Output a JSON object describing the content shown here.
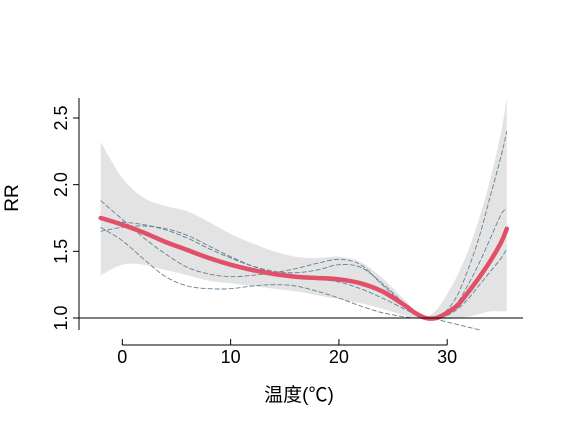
{
  "chart_data": {
    "type": "line",
    "title": "",
    "xlabel": "温度(℃)",
    "ylabel": "RR",
    "xlim": [
      -4,
      37
    ],
    "ylim": [
      0.91,
      2.8
    ],
    "x_ticks": [
      0,
      10,
      20,
      30
    ],
    "y_ticks": [
      1.0,
      1.5,
      2.0,
      2.5
    ],
    "x_tick_labels": [
      "0",
      "10",
      "20",
      "30"
    ],
    "y_tick_labels": [
      "1.0",
      "1.5",
      "2.0",
      "2.5"
    ],
    "reference_line": 1.0,
    "grid": false,
    "colors": {
      "main": "#e05068",
      "alt": "#5f8296",
      "band": "#e3e3e3",
      "ref": "#000000"
    },
    "confidence_band": {
      "x": [
        -2,
        0,
        2,
        4,
        6,
        8,
        10,
        12,
        14,
        16,
        18,
        20,
        22,
        24,
        26,
        27,
        28,
        29,
        30,
        31,
        32,
        33,
        34,
        35,
        35.5
      ],
      "upper": [
        2.32,
        2.05,
        1.9,
        1.84,
        1.8,
        1.72,
        1.63,
        1.56,
        1.5,
        1.46,
        1.45,
        1.46,
        1.42,
        1.3,
        1.14,
        1.06,
        1.01,
        1.06,
        1.18,
        1.33,
        1.52,
        1.76,
        2.05,
        2.4,
        2.65
      ],
      "lower": [
        1.32,
        1.4,
        1.4,
        1.36,
        1.32,
        1.28,
        1.26,
        1.24,
        1.22,
        1.2,
        1.17,
        1.14,
        1.11,
        1.07,
        1.02,
        1.0,
        0.99,
        0.99,
        0.99,
        1.0,
        1.01,
        1.03,
        1.05,
        1.05,
        1.05
      ]
    },
    "series": [
      {
        "role": "main",
        "x": [
          -2,
          0,
          2,
          4,
          6,
          8,
          10,
          12,
          14,
          16,
          18,
          20,
          22,
          24,
          26,
          27,
          28,
          29,
          30,
          31,
          32,
          33,
          34,
          35,
          35.5
        ],
        "values": [
          1.75,
          1.7,
          1.64,
          1.57,
          1.51,
          1.45,
          1.4,
          1.36,
          1.33,
          1.31,
          1.3,
          1.29,
          1.26,
          1.2,
          1.1,
          1.04,
          1.0,
          1.0,
          1.04,
          1.1,
          1.2,
          1.31,
          1.43,
          1.57,
          1.67
        ]
      },
      {
        "role": "alt",
        "x": [
          -2,
          0,
          2,
          4,
          6,
          8,
          10,
          12,
          14,
          16,
          18,
          20,
          22,
          24,
          26,
          27,
          28,
          29,
          30,
          31,
          32,
          33,
          34,
          35,
          35.5
        ],
        "values": [
          1.88,
          1.74,
          1.6,
          1.48,
          1.38,
          1.33,
          1.31,
          1.32,
          1.34,
          1.37,
          1.41,
          1.44,
          1.4,
          1.25,
          1.1,
          1.04,
          1.0,
          1.01,
          1.06,
          1.18,
          1.38,
          1.62,
          1.92,
          2.22,
          2.4
        ]
      },
      {
        "role": "alt",
        "x": [
          -2,
          0,
          2,
          4,
          6,
          8,
          10,
          12,
          14,
          16,
          18,
          20,
          22,
          24,
          26,
          27,
          28,
          29,
          30,
          31,
          32,
          33,
          34,
          35,
          35.5
        ],
        "values": [
          1.74,
          1.72,
          1.7,
          1.66,
          1.6,
          1.52,
          1.45,
          1.39,
          1.35,
          1.34,
          1.36,
          1.4,
          1.38,
          1.26,
          1.11,
          1.04,
          1.0,
          1.0,
          1.04,
          1.12,
          1.26,
          1.42,
          1.6,
          1.78,
          1.82
        ]
      },
      {
        "role": "alt",
        "x": [
          -2,
          0,
          2,
          4,
          6,
          8,
          10,
          12,
          14,
          16,
          18,
          20,
          22,
          24,
          26,
          27,
          28,
          29,
          30,
          31,
          32,
          33,
          34,
          35,
          35.5
        ],
        "values": [
          1.65,
          1.68,
          1.69,
          1.67,
          1.62,
          1.54,
          1.46,
          1.39,
          1.34,
          1.31,
          1.29,
          1.27,
          1.22,
          1.15,
          1.07,
          1.03,
          1.0,
          1.0,
          1.02,
          1.07,
          1.15,
          1.25,
          1.35,
          1.45,
          1.52
        ]
      },
      {
        "role": "alt",
        "x": [
          -2,
          0,
          2,
          4,
          6,
          8,
          10,
          12,
          14,
          16,
          18,
          20,
          22,
          24,
          26,
          27,
          28,
          29,
          30,
          31,
          32,
          33
        ],
        "values": [
          1.68,
          1.58,
          1.44,
          1.31,
          1.24,
          1.22,
          1.22,
          1.24,
          1.25,
          1.24,
          1.2,
          1.15,
          1.09,
          1.04,
          1.01,
          1.0,
          1.0,
          0.99,
          0.97,
          0.95,
          0.93,
          0.91
        ]
      }
    ]
  }
}
